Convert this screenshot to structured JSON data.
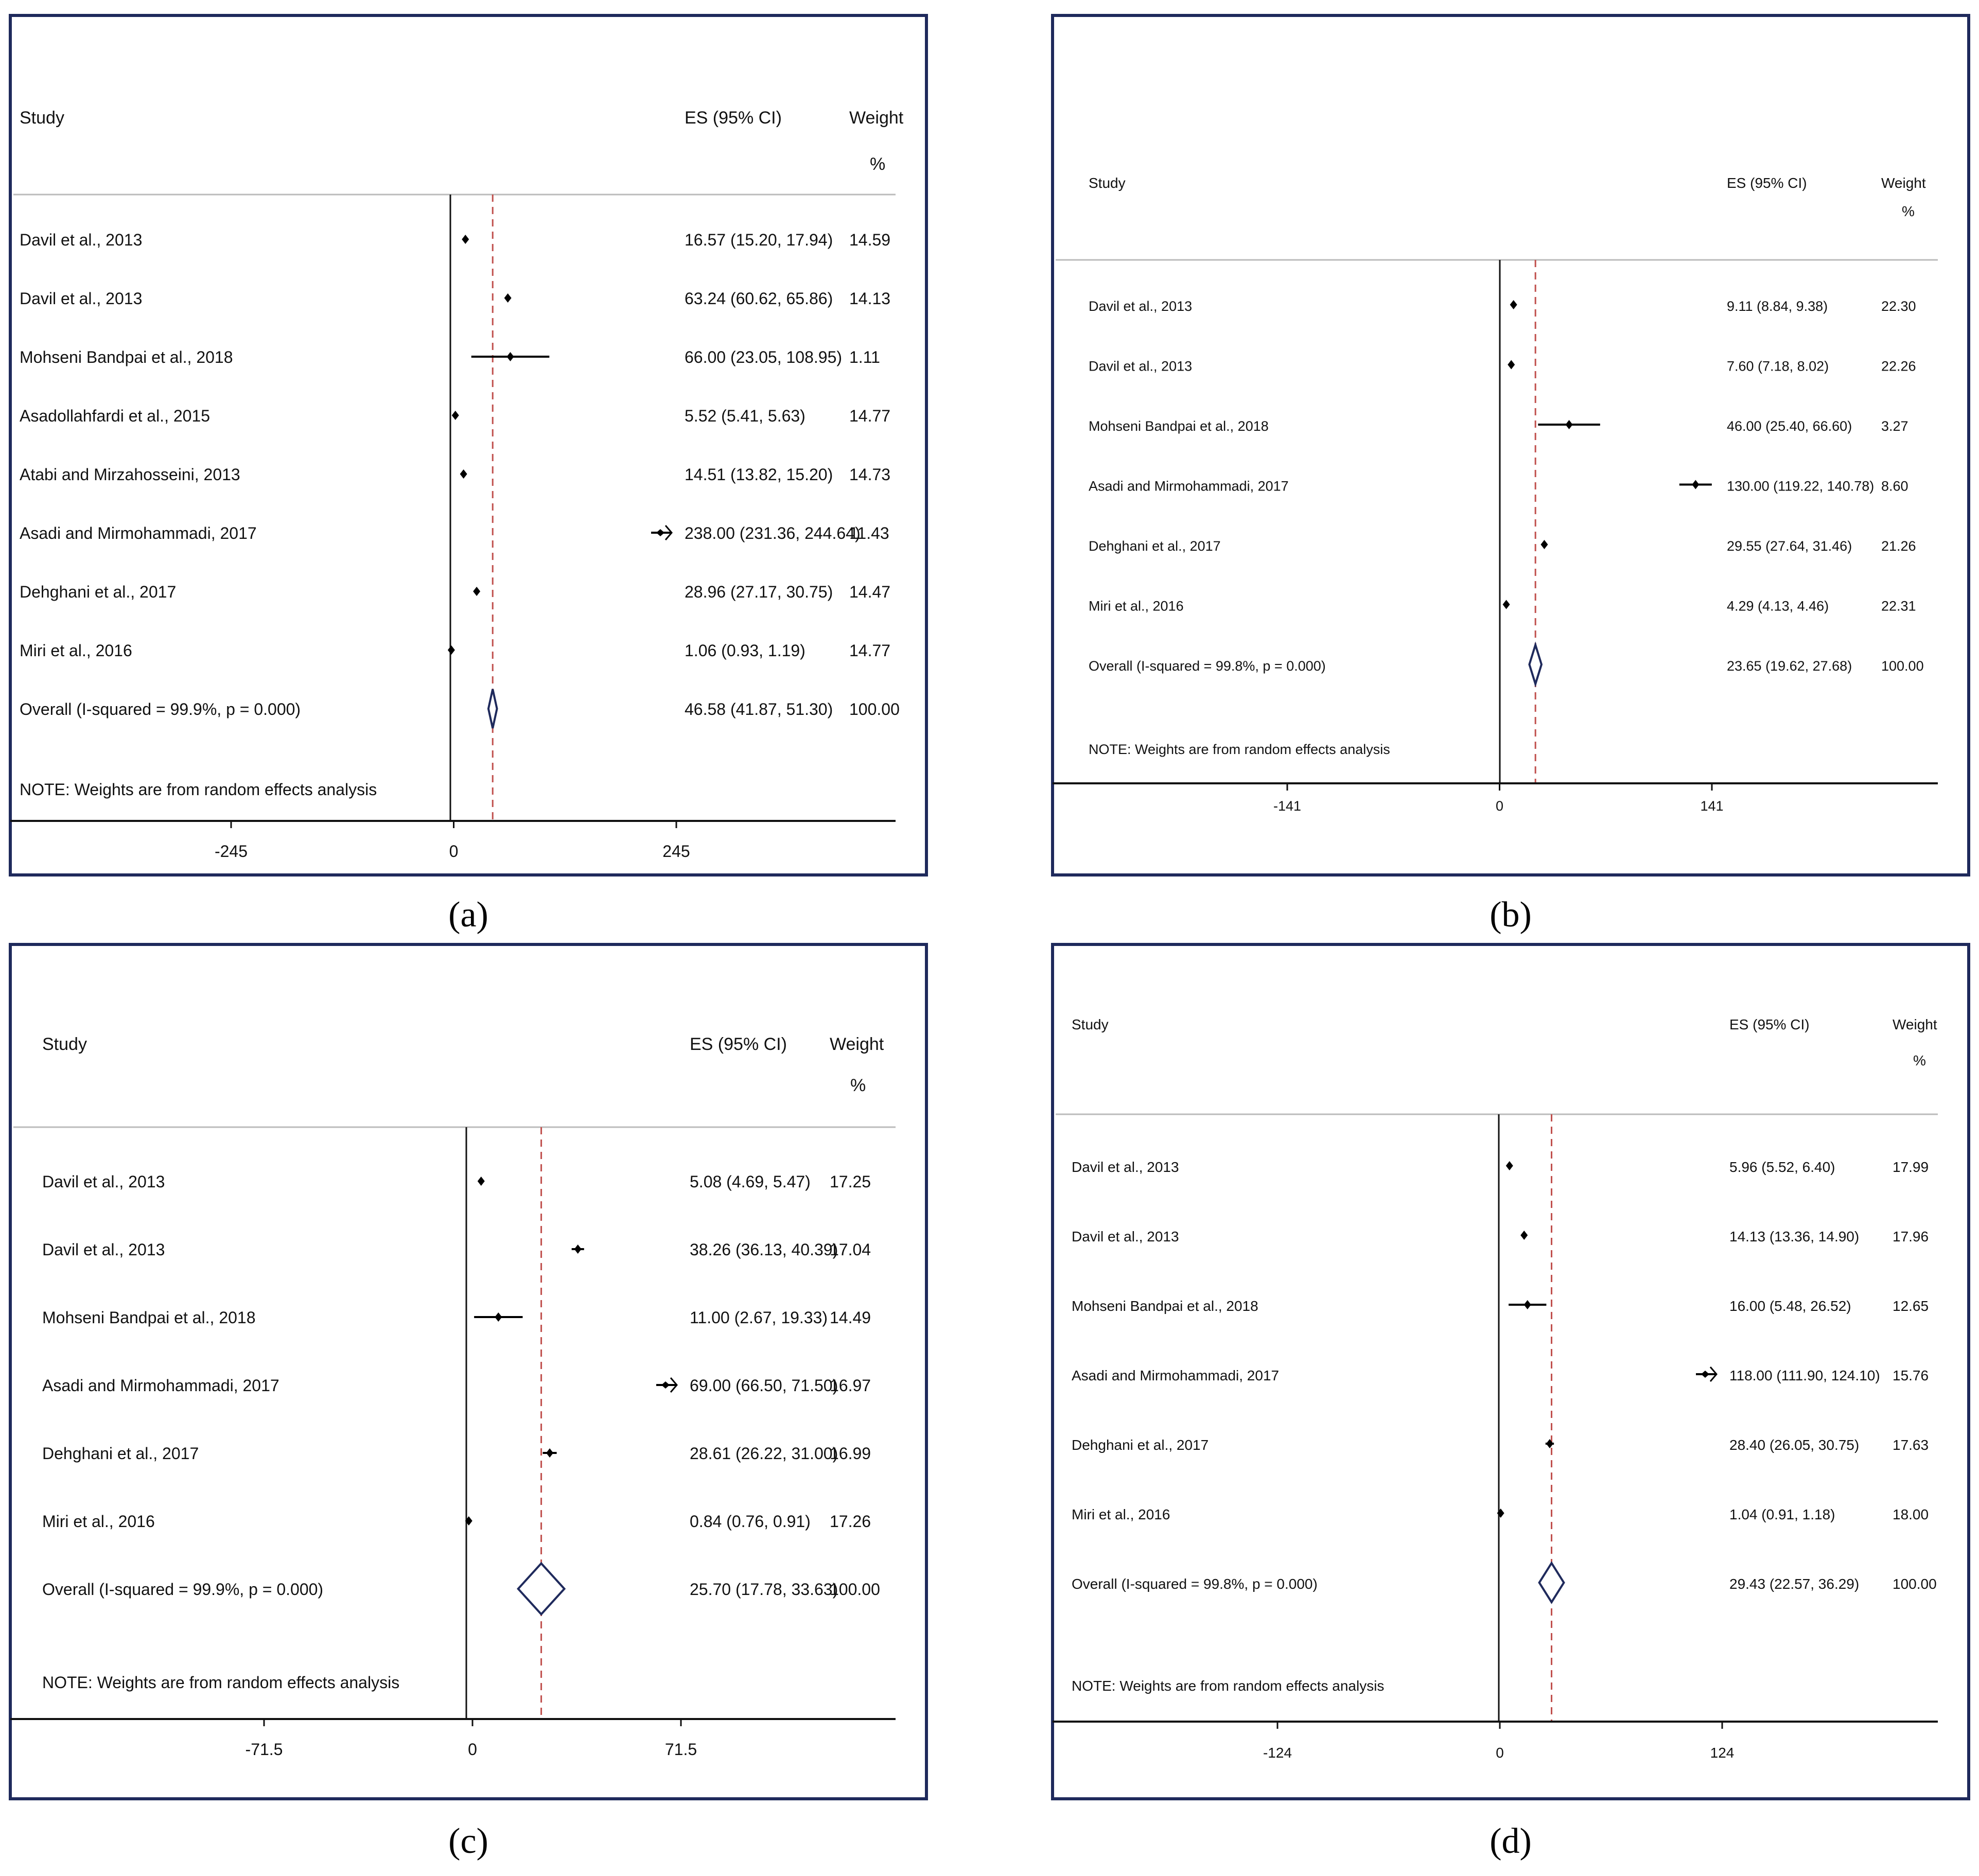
{
  "colors": {
    "frame": "#1f2a5c",
    "axis": "#111111",
    "marker": "#000000",
    "diamond": "#1f2a5c",
    "dashed_line": "#c0504d"
  },
  "headers": {
    "study": "Study",
    "es": "ES (95% CI)",
    "weight": "Weight",
    "weight_unit": "%"
  },
  "note": "NOTE: Weights are from random effects analysis",
  "chart_data": [
    {
      "type": "forest",
      "caption_letter": "a",
      "caption": "(a)",
      "ticks": [
        -245,
        0,
        245
      ],
      "tick_labels": [
        "-245",
        "0",
        "245"
      ],
      "overall_es": 46.58,
      "studies": [
        {
          "name": "Davil et al., 2013",
          "es": 16.57,
          "lo": 15.2,
          "hi": 17.94,
          "es_text": "16.57 (15.20, 17.94)",
          "weight": "14.59"
        },
        {
          "name": "Davil et al., 2013",
          "es": 63.24,
          "lo": 60.62,
          "hi": 65.86,
          "es_text": "63.24 (60.62, 65.86)",
          "weight": "14.13"
        },
        {
          "name": "Mohseni Bandpai et al., 2018",
          "es": 66.0,
          "lo": 23.05,
          "hi": 108.95,
          "es_text": "66.00 (23.05, 108.95)",
          "weight": "1.11"
        },
        {
          "name": "Asadollahfardi et al., 2015",
          "es": 5.52,
          "lo": 5.41,
          "hi": 5.63,
          "es_text": "5.52 (5.41, 5.63)",
          "weight": "14.77"
        },
        {
          "name": "Atabi and Mirzahosseini, 2013",
          "es": 14.51,
          "lo": 13.82,
          "hi": 15.2,
          "es_text": "14.51 (13.82, 15.20)",
          "weight": "14.73"
        },
        {
          "name": "Asadi and Mirmohammadi, 2017",
          "es": 238.0,
          "lo": 231.36,
          "hi": 244.64,
          "es_text": "238.00 (231.36, 244.64)",
          "weight": "11.43",
          "truncated": true
        },
        {
          "name": "Dehghani et al., 2017",
          "es": 28.96,
          "lo": 27.17,
          "hi": 30.75,
          "es_text": "28.96 (27.17, 30.75)",
          "weight": "14.47"
        },
        {
          "name": "Miri et al., 2016",
          "es": 1.06,
          "lo": 0.93,
          "hi": 1.19,
          "es_text": "1.06 (0.93, 1.19)",
          "weight": "14.77"
        }
      ],
      "overall": {
        "name": "Overall  (I-squared = 99.9%, p = 0.000)",
        "es": 46.58,
        "lo": 41.87,
        "hi": 51.3,
        "es_text": "46.58 (41.87, 51.30)",
        "weight": "100.00"
      }
    },
    {
      "type": "forest",
      "caption_letter": "b",
      "caption": "(b)",
      "ticks": [
        -141,
        0,
        141
      ],
      "tick_labels": [
        "-141",
        "0",
        "141"
      ],
      "overall_es": 23.65,
      "studies": [
        {
          "name": "Davil et al., 2013",
          "es": 9.11,
          "lo": 8.84,
          "hi": 9.38,
          "es_text": "9.11 (8.84, 9.38)",
          "weight": "22.30"
        },
        {
          "name": "Davil et al., 2013",
          "es": 7.6,
          "lo": 7.18,
          "hi": 8.02,
          "es_text": "7.60 (7.18, 8.02)",
          "weight": "22.26"
        },
        {
          "name": "Mohseni Bandpai et al., 2018",
          "es": 46.0,
          "lo": 25.4,
          "hi": 66.6,
          "es_text": "46.00 (25.40, 66.60)",
          "weight": "3.27"
        },
        {
          "name": "Asadi and Mirmohammadi, 2017",
          "es": 130.0,
          "lo": 119.22,
          "hi": 140.78,
          "es_text": "130.00 (119.22, 140.78)",
          "weight": "8.60"
        },
        {
          "name": "Dehghani et al., 2017",
          "es": 29.55,
          "lo": 27.64,
          "hi": 31.46,
          "es_text": "29.55 (27.64, 31.46)",
          "weight": "21.26"
        },
        {
          "name": "Miri et al., 2016",
          "es": 4.29,
          "lo": 4.13,
          "hi": 4.46,
          "es_text": "4.29 (4.13, 4.46)",
          "weight": "22.31"
        }
      ],
      "overall": {
        "name": "Overall  (I-squared = 99.8%, p = 0.000)",
        "es": 23.65,
        "lo": 19.62,
        "hi": 27.68,
        "es_text": "23.65 (19.62, 27.68)",
        "weight": "100.00"
      }
    },
    {
      "type": "forest",
      "caption_letter": "c",
      "caption": "(c)",
      "ticks": [
        -71.5,
        0,
        71.5
      ],
      "tick_labels": [
        "-71.5",
        "0",
        "71.5"
      ],
      "overall_es": 25.7,
      "studies": [
        {
          "name": "Davil et al., 2013",
          "es": 5.08,
          "lo": 4.69,
          "hi": 5.47,
          "es_text": "5.08 (4.69, 5.47)",
          "weight": "17.25"
        },
        {
          "name": "Davil et al., 2013",
          "es": 38.26,
          "lo": 36.13,
          "hi": 40.39,
          "es_text": "38.26 (36.13, 40.39)",
          "weight": "17.04"
        },
        {
          "name": "Mohseni Bandpai et al., 2018",
          "es": 11.0,
          "lo": 2.67,
          "hi": 19.33,
          "es_text": "11.00 (2.67, 19.33)",
          "weight": "14.49"
        },
        {
          "name": "Asadi and Mirmohammadi, 2017",
          "es": 69.0,
          "lo": 66.5,
          "hi": 71.5,
          "es_text": "69.00 (66.50, 71.50)",
          "weight": "16.97",
          "truncated": true
        },
        {
          "name": "Dehghani et al., 2017",
          "es": 28.61,
          "lo": 26.22,
          "hi": 31.0,
          "es_text": "28.61 (26.22, 31.00)",
          "weight": "16.99"
        },
        {
          "name": "Miri et al., 2016",
          "es": 0.84,
          "lo": 0.76,
          "hi": 0.91,
          "es_text": "0.84 (0.76, 0.91)",
          "weight": "17.26"
        }
      ],
      "overall": {
        "name": "Overall  (I-squared = 99.9%, p = 0.000)",
        "es": 25.7,
        "lo": 17.78,
        "hi": 33.63,
        "es_text": "25.70 (17.78, 33.63)",
        "weight": "100.00"
      }
    },
    {
      "type": "forest",
      "caption_letter": "d",
      "caption": "(d)",
      "ticks": [
        -124,
        0,
        124
      ],
      "tick_labels": [
        "-124",
        "0",
        "124"
      ],
      "overall_es": 29.43,
      "studies": [
        {
          "name": "Davil et al., 2013",
          "es": 5.96,
          "lo": 5.52,
          "hi": 6.4,
          "es_text": "5.96 (5.52, 6.40)",
          "weight": "17.99"
        },
        {
          "name": "Davil et al., 2013",
          "es": 14.13,
          "lo": 13.36,
          "hi": 14.9,
          "es_text": "14.13 (13.36, 14.90)",
          "weight": "17.96"
        },
        {
          "name": "Mohseni Bandpai et al., 2018",
          "es": 16.0,
          "lo": 5.48,
          "hi": 26.52,
          "es_text": "16.00 (5.48, 26.52)",
          "weight": "12.65"
        },
        {
          "name": "Asadi and Mirmohammadi, 2017",
          "es": 118.0,
          "lo": 111.9,
          "hi": 124.1,
          "es_text": "118.00 (111.90, 124.10)",
          "weight": "15.76",
          "truncated": true
        },
        {
          "name": "Dehghani et al., 2017",
          "es": 28.4,
          "lo": 26.05,
          "hi": 30.75,
          "es_text": "28.40 (26.05, 30.75)",
          "weight": "17.63"
        },
        {
          "name": "Miri et al., 2016",
          "es": 1.04,
          "lo": 0.91,
          "hi": 1.18,
          "es_text": "1.04 (0.91, 1.18)",
          "weight": "18.00"
        }
      ],
      "overall": {
        "name": "Overall  (I-squared = 99.8%, p = 0.000)",
        "es": 29.43,
        "lo": 22.57,
        "hi": 36.29,
        "es_text": "29.43 (22.57, 36.29)",
        "weight": "100.00"
      }
    }
  ]
}
